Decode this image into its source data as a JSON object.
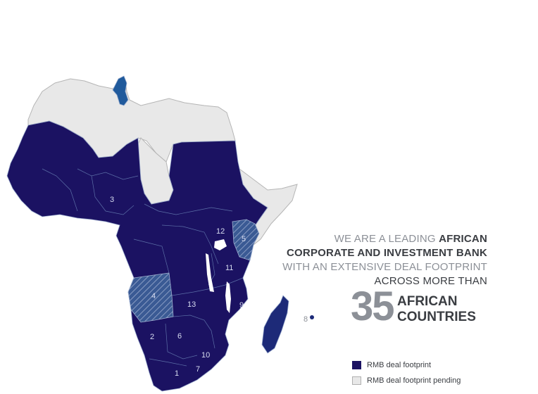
{
  "headline": {
    "line1_light": "WE ARE A LEADING ",
    "line1_bold": "AFRICAN",
    "line2_bold": "CORPORATE AND INVESTMENT BANK",
    "line3_light": "WITH AN EXTENSIVE DEAL FOOTPRINT",
    "line4_dark": "ACROSS MORE THAN"
  },
  "stat": {
    "number": "35",
    "label_line1": "AFRICAN",
    "label_line2": "COUNTRIES"
  },
  "legend": {
    "footprint_label": "RMB deal footprint",
    "pending_label": "RMB deal footprint pending"
  },
  "colors": {
    "footprint_top": "#205a9c",
    "footprint_bottom": "#1b1262",
    "pending": "#e8e8e8",
    "border": "#b5b5b5",
    "text_dark": "#3a3d42",
    "text_light": "#8c9097"
  },
  "country_labels": [
    "1",
    "2",
    "3",
    "4",
    "5",
    "6",
    "7",
    "8",
    "9",
    "10",
    "11",
    "12",
    "13"
  ]
}
